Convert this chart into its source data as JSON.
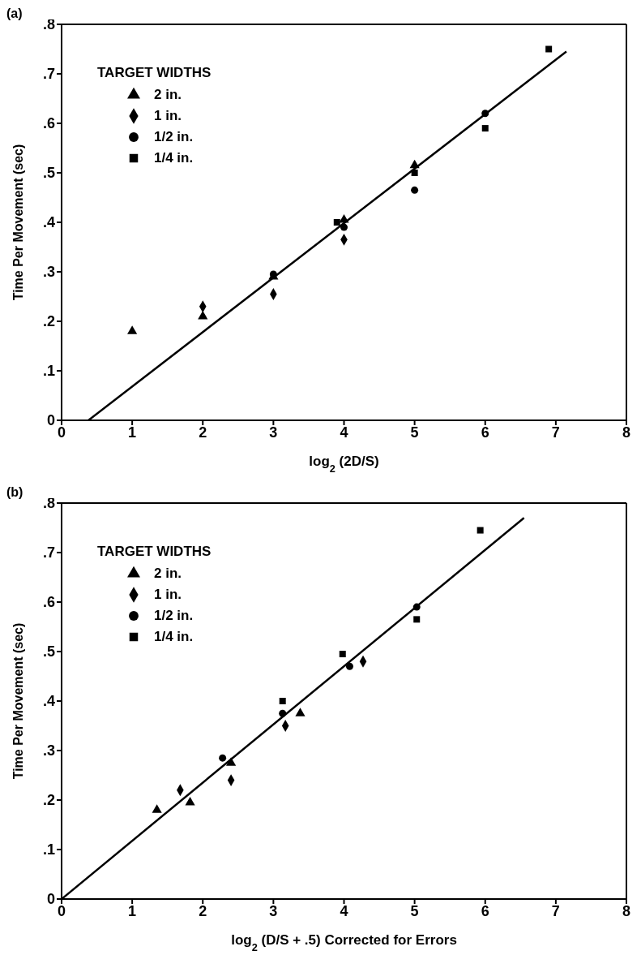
{
  "chart_data": [
    {
      "type": "scatter",
      "title": "(a)",
      "xlabel": "log$_{2}$ (2D/S)",
      "ylabel": "Time Per Movement (sec)",
      "legend_title": "TARGET WIDTHS",
      "legend": "top left",
      "xlim": [
        0,
        8
      ],
      "xticks": [
        0,
        1,
        2,
        3,
        4,
        5,
        6,
        7,
        8
      ],
      "ylim": [
        0,
        0.8
      ],
      "yticks": [
        0,
        {
          "value": 0.1,
          "label": ".1"
        },
        {
          "value": 0.2,
          "label": ".2"
        },
        {
          "value": 0.3,
          "label": ".3"
        },
        {
          "value": 0.4,
          "label": ".4"
        },
        {
          "value": 0.5,
          "label": ".5"
        },
        {
          "value": 0.6,
          "label": ".6"
        },
        {
          "value": 0.7,
          "label": ".7"
        },
        {
          "value": 0.8,
          "label": ".8"
        }
      ],
      "series": [
        {
          "name": "2 in.",
          "color": "#000000",
          "marker": "triangle",
          "x": [
            1,
            2,
            3,
            4,
            5
          ],
          "values": [
            0.18,
            0.21,
            0.29,
            0.405,
            0.515
          ]
        },
        {
          "name": "1 in.",
          "color": "#000000",
          "marker": "diamond",
          "x": [
            2,
            3,
            4
          ],
          "values": [
            0.23,
            0.255,
            0.365
          ]
        },
        {
          "name": "1/2 in.",
          "color": "#000000",
          "marker": "circle",
          "x": [
            3,
            4,
            5,
            6
          ],
          "values": [
            0.295,
            0.39,
            0.465,
            0.62
          ]
        },
        {
          "name": "1/4 in.",
          "color": "#000000",
          "marker": "square",
          "x": [
            3.9,
            5,
            6,
            6.9
          ],
          "values": [
            0.4,
            0.5,
            0.59,
            0.75
          ]
        },
        {
          "type": "line",
          "color": "#000000",
          "line_style": "solid",
          "marker": "none",
          "x": [
            0.38,
            7.15
          ],
          "values": [
            0,
            0.745
          ]
        }
      ]
    },
    {
      "type": "scatter",
      "title": "(b)",
      "xlabel": "log$_{2}$ (D/S + .5) Corrected for Errors",
      "ylabel": "Time Per Movement (sec)",
      "legend_title": "TARGET WIDTHS",
      "legend": "top left",
      "xlim": [
        0,
        8
      ],
      "xticks": [
        0,
        1,
        2,
        3,
        4,
        5,
        6,
        7,
        8
      ],
      "ylim": [
        0,
        0.8
      ],
      "yticks": [
        0,
        {
          "value": 0.1,
          "label": ".1"
        },
        {
          "value": 0.2,
          "label": ".2"
        },
        {
          "value": 0.3,
          "label": ".3"
        },
        {
          "value": 0.4,
          "label": ".4"
        },
        {
          "value": 0.5,
          "label": ".5"
        },
        {
          "value": 0.6,
          "label": ".6"
        },
        {
          "value": 0.7,
          "label": ".7"
        },
        {
          "value": 0.8,
          "label": ".8"
        }
      ],
      "series": [
        {
          "name": "2 in.",
          "color": "#000000",
          "marker": "triangle",
          "x": [
            1.35,
            1.82,
            2.4,
            3.38
          ],
          "values": [
            0.18,
            0.195,
            0.275,
            0.375
          ]
        },
        {
          "name": "1 in.",
          "color": "#000000",
          "marker": "diamond",
          "x": [
            1.68,
            2.4,
            3.17,
            4.27
          ],
          "values": [
            0.22,
            0.24,
            0.35,
            0.48
          ]
        },
        {
          "name": "1/2 in.",
          "color": "#000000",
          "marker": "circle",
          "x": [
            2.28,
            3.13,
            4.08,
            5.03
          ],
          "values": [
            0.285,
            0.375,
            0.47,
            0.59
          ]
        },
        {
          "name": "1/4 in.",
          "color": "#000000",
          "marker": "square",
          "x": [
            3.13,
            3.98,
            5.03,
            5.93
          ],
          "values": [
            0.4,
            0.495,
            0.565,
            0.745
          ]
        },
        {
          "type": "line",
          "color": "#000000",
          "line_style": "solid",
          "marker": "none",
          "x": [
            0,
            6.55
          ],
          "values": [
            0,
            0.77
          ]
        }
      ]
    }
  ]
}
